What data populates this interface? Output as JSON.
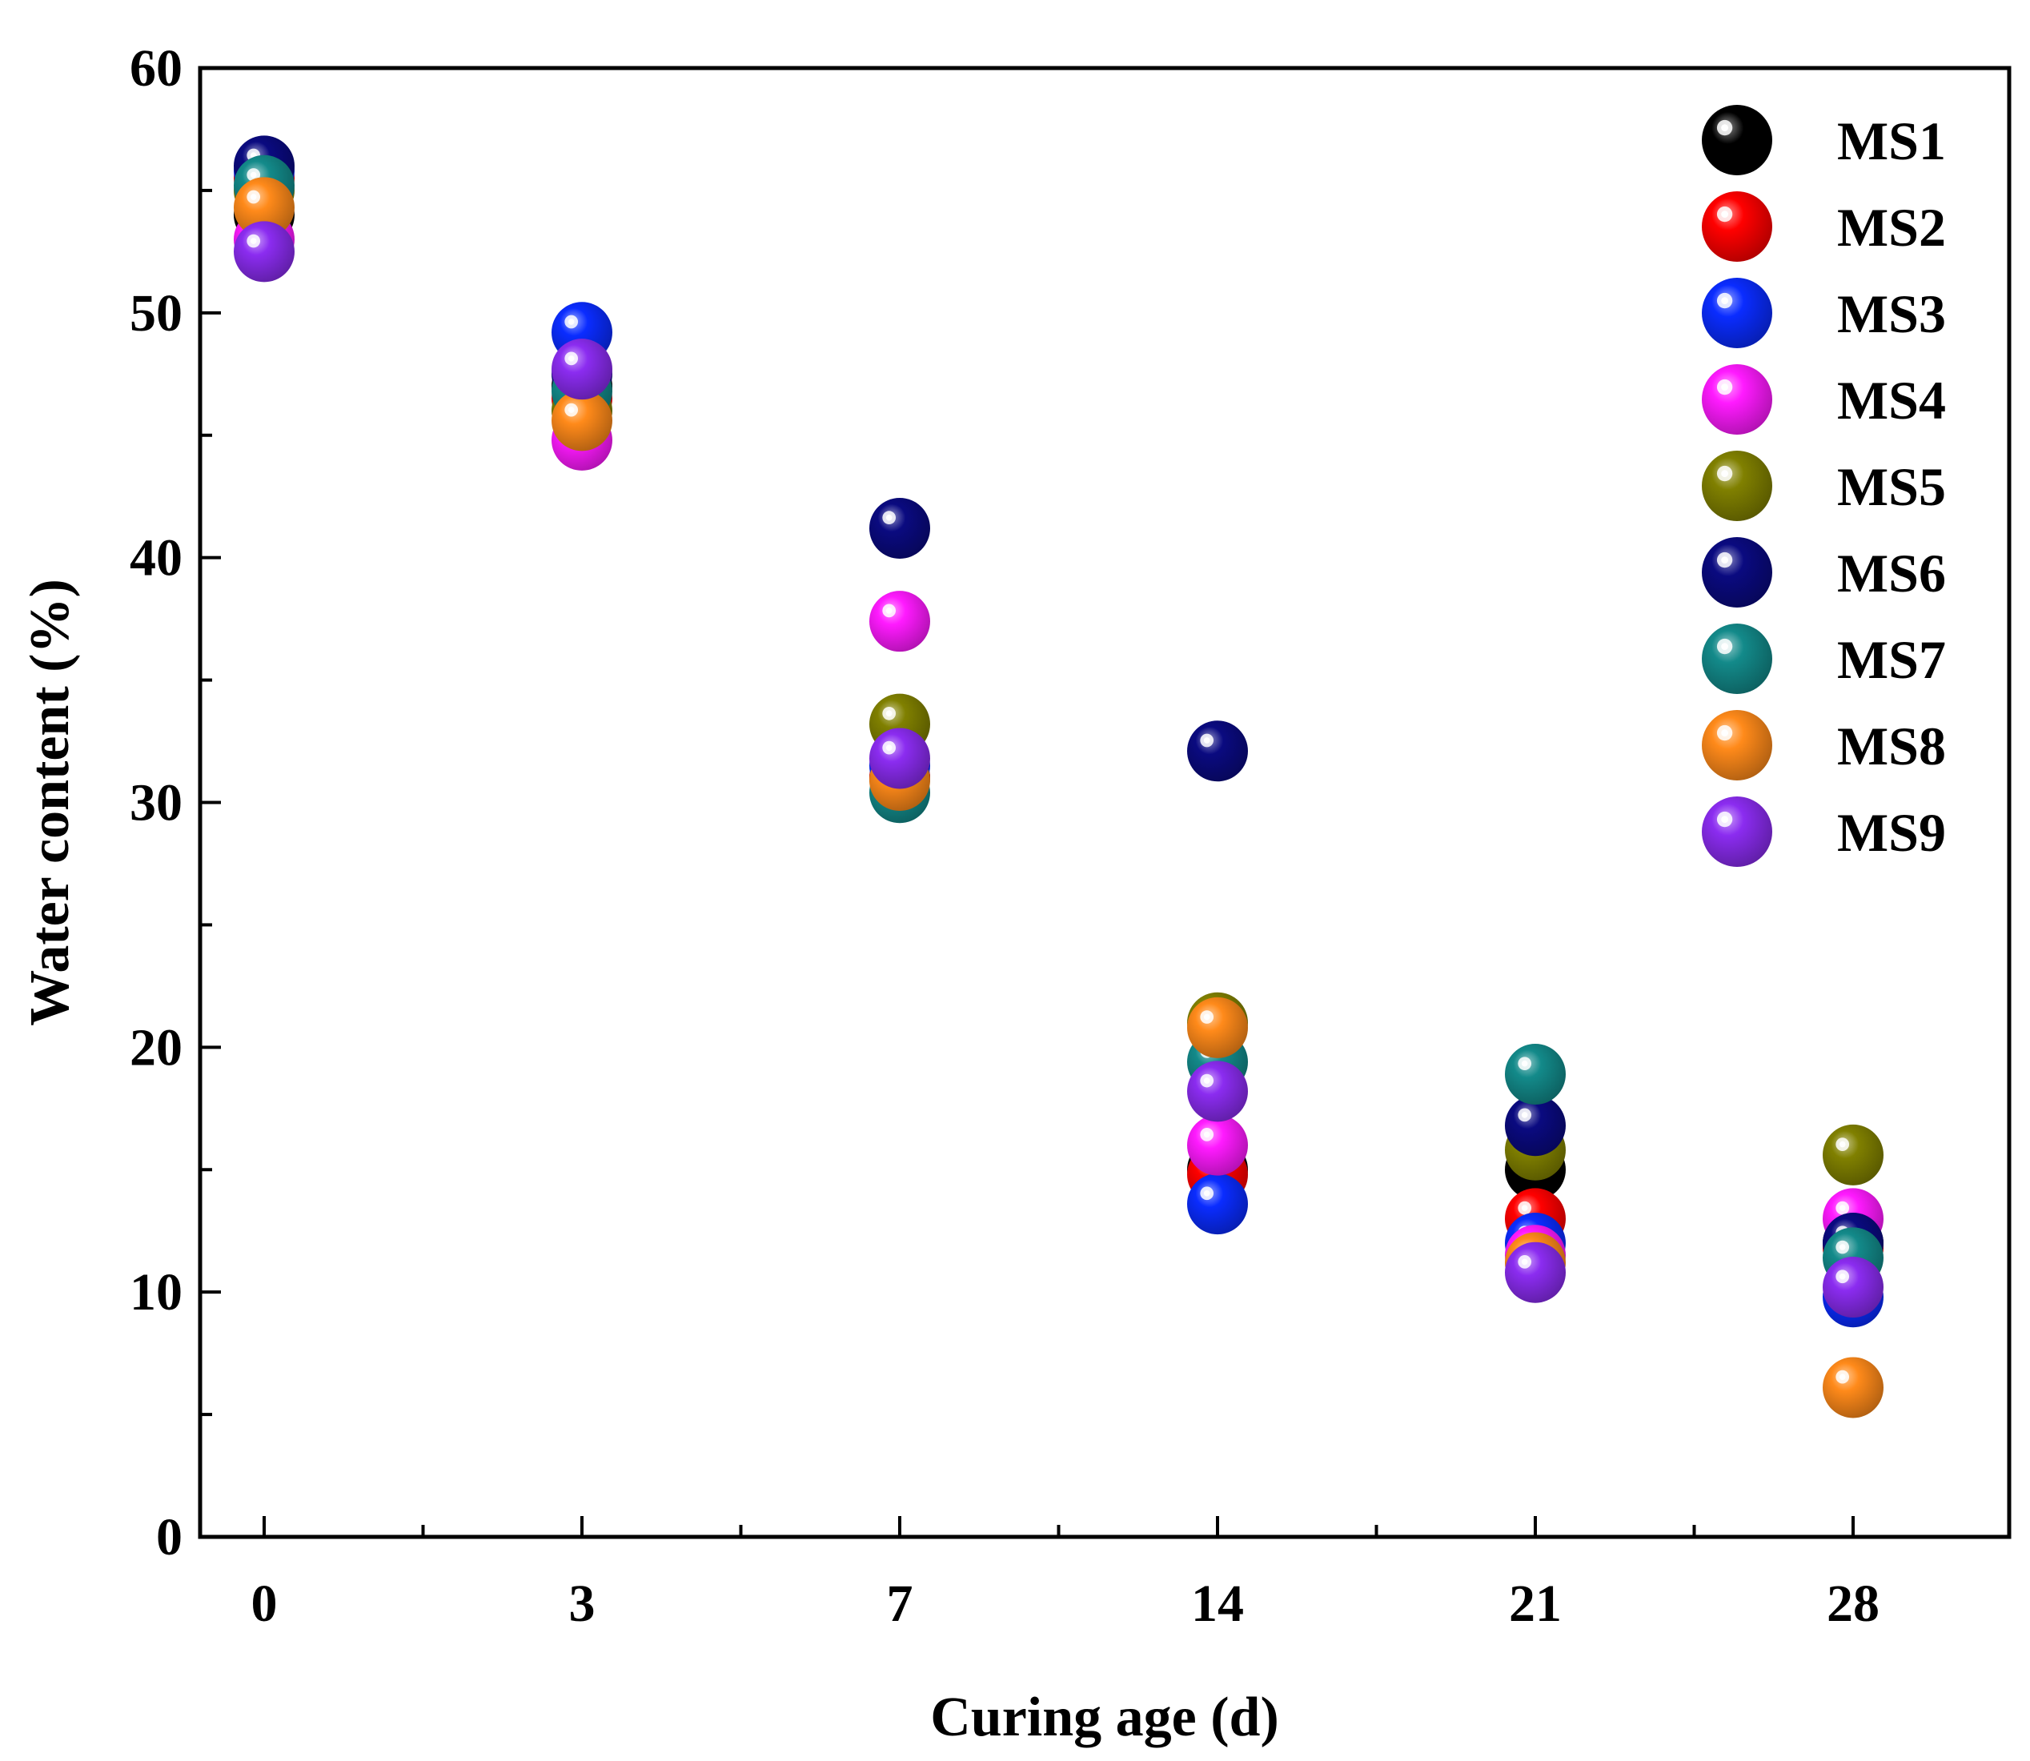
{
  "chart_data": {
    "type": "scatter",
    "title": "",
    "xlabel": "Curing age (d)",
    "ylabel": "Water content (%)",
    "categories": [
      "0",
      "3",
      "7",
      "14",
      "21",
      "28"
    ],
    "ylim": [
      0,
      60
    ],
    "yticks": [
      0,
      10,
      20,
      30,
      40,
      50,
      60
    ],
    "legend_position": "top-right",
    "series": [
      {
        "name": "MS1",
        "color": "#000000",
        "values": [
          54.0,
          47.0,
          31.0,
          15.0,
          15.0,
          12.0
        ]
      },
      {
        "name": "MS2",
        "color": "#ff0000",
        "values": [
          55.5,
          46.5,
          31.0,
          14.8,
          13.0,
          11.8
        ]
      },
      {
        "name": "MS3",
        "color": "#0a2cff",
        "values": [
          55.8,
          49.2,
          31.5,
          13.6,
          12.0,
          9.8
        ]
      },
      {
        "name": "MS4",
        "color": "#ff1aff",
        "values": [
          53.0,
          44.8,
          37.4,
          16.0,
          11.5,
          13.0
        ]
      },
      {
        "name": "MS5",
        "color": "#808000",
        "values": [
          55.0,
          46.0,
          33.2,
          21.0,
          15.8,
          15.6
        ]
      },
      {
        "name": "MS6",
        "color": "#0a0a80",
        "values": [
          56.0,
          47.5,
          41.2,
          32.1,
          16.8,
          12.0
        ]
      },
      {
        "name": "MS7",
        "color": "#138a8a",
        "values": [
          55.2,
          46.8,
          30.4,
          19.4,
          18.9,
          11.4
        ]
      },
      {
        "name": "MS8",
        "color": "#ff8a1a",
        "values": [
          54.3,
          45.6,
          30.9,
          20.8,
          11.2,
          6.1
        ]
      },
      {
        "name": "MS9",
        "color": "#8b2cf0",
        "values": [
          52.5,
          47.7,
          31.8,
          18.2,
          10.8,
          10.2
        ]
      }
    ]
  }
}
